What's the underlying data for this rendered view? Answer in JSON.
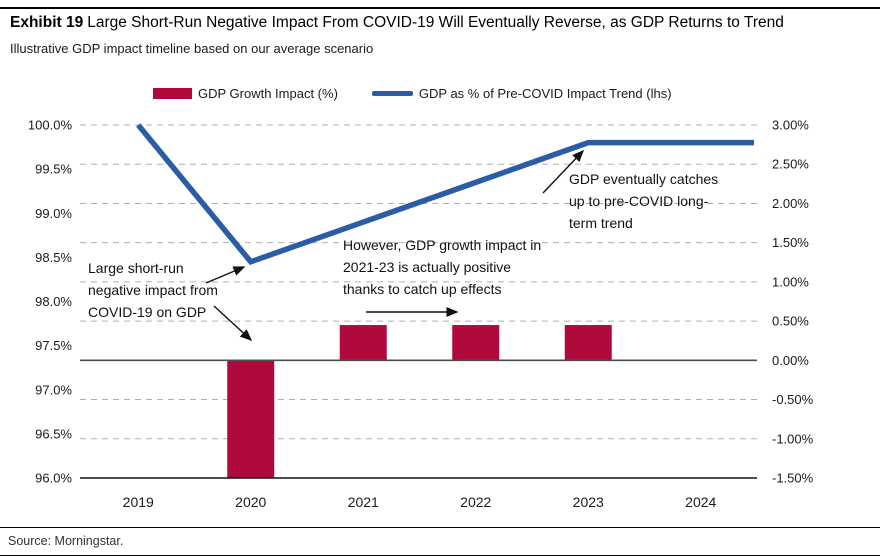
{
  "title": {
    "exhibit_label": "Exhibit 19",
    "text": "Large Short-Run Negative Impact From COVID-19 Will Eventually Reverse, as GDP Returns to Trend"
  },
  "subtitle": "Illustrative GDP impact timeline based on our average scenario",
  "legend": [
    {
      "label": "GDP Growth Impact (%)",
      "color": "#B00A3C"
    },
    {
      "label": "GDP as % of Pre-COVID Impact Trend (lhs)",
      "color": "#2B5DA6"
    }
  ],
  "chart_data": {
    "type": "bar+line",
    "categories": [
      "2019",
      "2020",
      "2021",
      "2022",
      "2023",
      "2024"
    ],
    "series": [
      {
        "name": "GDP Growth Impact (%)",
        "type": "bar",
        "axis": "right",
        "color": "#B00A3C",
        "values": [
          null,
          -1.5,
          0.45,
          0.45,
          0.45,
          null
        ]
      },
      {
        "name": "GDP as % of Pre-COVID Impact Trend (lhs)",
        "type": "line",
        "axis": "left",
        "color": "#2B5DA6",
        "values": [
          100.0,
          98.45,
          98.9,
          99.35,
          99.8,
          99.8
        ]
      }
    ],
    "left_axis": {
      "min": 96.0,
      "max": 100.0,
      "tick_labels": [
        "100.0%",
        "99.5%",
        "99.0%",
        "98.5%",
        "98.0%",
        "97.5%",
        "97.0%",
        "96.5%",
        "96.0%"
      ]
    },
    "right_axis": {
      "min": -1.5,
      "max": 3.0,
      "tick_labels": [
        "3.00%",
        "2.50%",
        "2.00%",
        "1.50%",
        "1.00%",
        "0.50%",
        "0.00%",
        "-0.50%",
        "-1.00%",
        "-1.50%"
      ]
    },
    "grid": "dashed horizontal lines at right-axis ticks",
    "zero_line_value": 0.0,
    "line_extends_to_right_edge": true
  },
  "annotations": {
    "ann1": {
      "line1": "Large short-run",
      "line2": "negative impact from",
      "line3": "COVID-19 on GDP"
    },
    "ann2": {
      "line1": "However, GDP growth impact in",
      "line2": "2021-23 is actually positive",
      "line3": "thanks to catch up effects"
    },
    "ann3": {
      "line1": "GDP eventually catches",
      "line2": "up to pre-COVID long-",
      "line3": "term trend"
    }
  },
  "source": "Source: Morningstar."
}
